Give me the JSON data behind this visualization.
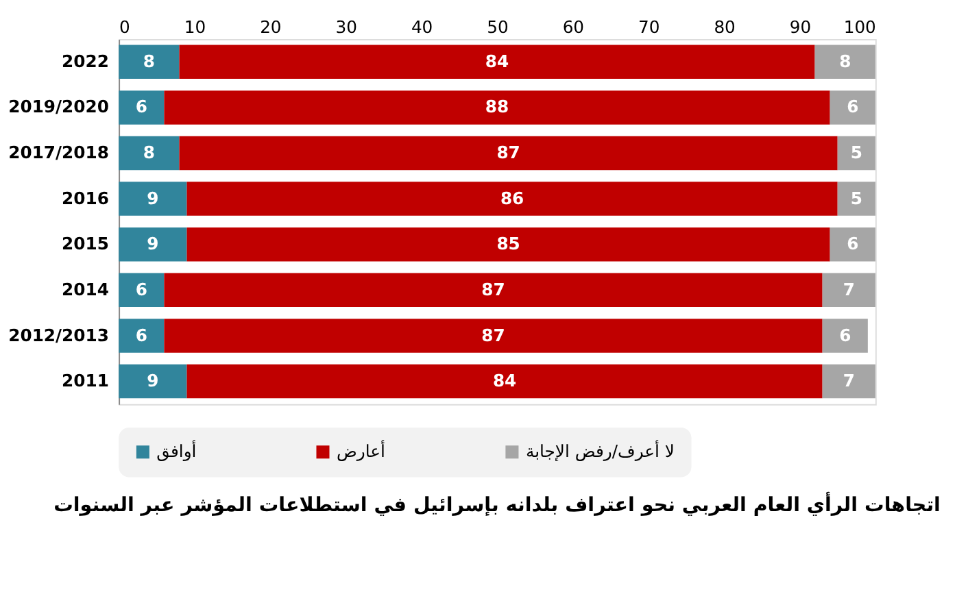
{
  "chart_data": {
    "type": "bar",
    "orientation": "horizontal",
    "stacked": true,
    "title": "اتجاهات الرأي العام العربي نحو اعتراف بلدانه بإسرائيل في استطلاعات المؤشر عبر السنوات",
    "categories": [
      "2022",
      "2019/2020",
      "2017/2018",
      "2016",
      "2015",
      "2014",
      "2012/2013",
      "2011"
    ],
    "series": [
      {
        "name": "أوافق",
        "color": "#31859c",
        "values": [
          8,
          6,
          8,
          9,
          9,
          6,
          6,
          9
        ]
      },
      {
        "name": "أعارض",
        "color": "#c00000",
        "values": [
          84,
          88,
          87,
          86,
          85,
          87,
          87,
          84
        ]
      },
      {
        "name": "لا أعرف/رفض الإجابة",
        "color": "#a6a6a6",
        "values": [
          8,
          6,
          5,
          5,
          6,
          7,
          6,
          7
        ]
      }
    ],
    "xlim": [
      0,
      100
    ],
    "xticks": [
      0,
      10,
      20,
      30,
      40,
      50,
      60,
      70,
      80,
      90,
      100
    ],
    "data_labels": true,
    "legend": "bottom",
    "grid": false
  }
}
